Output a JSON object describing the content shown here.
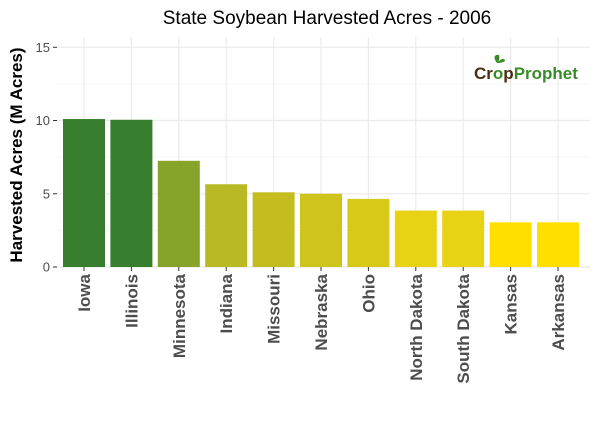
{
  "chart_data": {
    "type": "bar",
    "title": "State Soybean Harvested Acres - 2006",
    "xlabel": "",
    "ylabel": "Harvested Acres (M Acres)",
    "ylim": [
      0,
      15.7
    ],
    "yticks": [
      0,
      5,
      10,
      15
    ],
    "grid": true,
    "legend": "none",
    "categories": [
      "Iowa",
      "Illinois",
      "Minnesota",
      "Indiana",
      "Missouri",
      "Nebraska",
      "Ohio",
      "North Dakota",
      "South Dakota",
      "Kansas",
      "Arkansas"
    ],
    "values": [
      10.1,
      10.05,
      7.25,
      5.65,
      5.1,
      5.0,
      4.65,
      3.85,
      3.85,
      3.05,
      3.05
    ],
    "bar_colors": [
      "#367d2d",
      "#367d2d",
      "#86a32a",
      "#b8b924",
      "#c4bd20",
      "#cfc41c",
      "#d8c818",
      "#e7d313",
      "#e7d313",
      "#ffde00",
      "#ffde00"
    ]
  },
  "logo": {
    "text": "CropProphet",
    "crop_part": "Cr",
    "o_part": "o",
    "p_part": "p",
    "prophet_part": "Prophet",
    "color_dark": "#4a2c12",
    "color_green": "#3b8a2a"
  },
  "colors": {
    "panel_bg": "#ffffff",
    "grid_major": "#ebebeb",
    "grid_minor": "#f5f5f5",
    "axis_text": "#4d4d4d",
    "title_text": "#000000"
  }
}
